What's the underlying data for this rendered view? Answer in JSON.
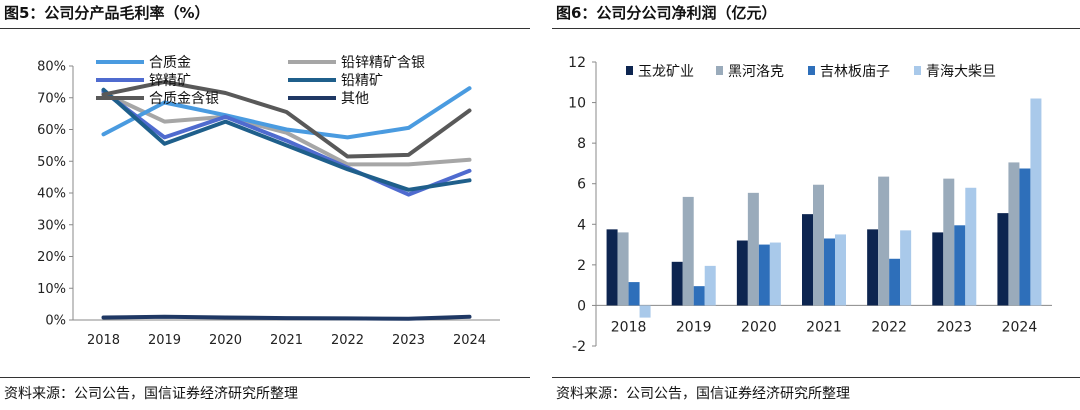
{
  "chart_data": [
    {
      "type": "line",
      "title": "图5：公司分产品毛利率（%）",
      "categories": [
        "2018",
        "2019",
        "2020",
        "2021",
        "2022",
        "2023",
        "2024"
      ],
      "ylim": [
        0,
        80
      ],
      "yticks": [
        "0%",
        "10%",
        "20%",
        "30%",
        "40%",
        "50%",
        "60%",
        "70%",
        "80%"
      ],
      "ytick_values": [
        0,
        10,
        20,
        30,
        40,
        50,
        60,
        70,
        80
      ],
      "grid": false,
      "legend": "top-left, two columns",
      "series": [
        {
          "name": "合质金",
          "color": "#4a9be0",
          "values": [
            58.5,
            68.5,
            64.5,
            60,
            57.5,
            60.5,
            73
          ]
        },
        {
          "name": "铅锌精矿含银",
          "color": "#a6a6a6",
          "values": [
            71.5,
            62.5,
            64,
            59,
            49,
            49,
            50.5
          ]
        },
        {
          "name": "锌精矿",
          "color": "#4f6bcf",
          "values": [
            72,
            57.5,
            64,
            56.5,
            48,
            39.5,
            47
          ]
        },
        {
          "name": "铅精矿",
          "color": "#1f5f8b",
          "values": [
            72.5,
            55.5,
            62.5,
            55,
            47.5,
            41,
            44
          ]
        },
        {
          "name": "合质金含银",
          "color": "#595959",
          "values": [
            71,
            75,
            71.5,
            65.5,
            51.5,
            52,
            66
          ]
        },
        {
          "name": "其他",
          "color": "#1f3864",
          "values": [
            0.8,
            1,
            0.8,
            0.6,
            0.5,
            0.4,
            1
          ]
        }
      ],
      "source": "资料来源：公司公告，国信证券经济研究所整理"
    },
    {
      "type": "bar",
      "title": "图6：公司分公司净利润（亿元）",
      "categories": [
        "2018",
        "2019",
        "2020",
        "2021",
        "2022",
        "2023",
        "2024"
      ],
      "ylim": [
        -2,
        12
      ],
      "yticks": [
        "-2",
        "0",
        "2",
        "4",
        "6",
        "8",
        "10",
        "12"
      ],
      "ytick_values": [
        -2,
        0,
        2,
        4,
        6,
        8,
        10,
        12
      ],
      "grid": false,
      "legend": "top-left, one row",
      "series": [
        {
          "name": "玉龙矿业",
          "color": "#0d2550",
          "values": [
            3.75,
            2.15,
            3.2,
            4.5,
            3.75,
            3.6,
            4.55
          ]
        },
        {
          "name": "黑河洛克",
          "color": "#9aabbb",
          "values": [
            3.6,
            5.35,
            5.55,
            5.95,
            6.35,
            6.25,
            7.05
          ]
        },
        {
          "name": "吉林板庙子",
          "color": "#2e6fba",
          "values": [
            1.15,
            0.95,
            3.0,
            3.3,
            2.3,
            3.95,
            6.75
          ]
        },
        {
          "name": "青海大柴旦",
          "color": "#a9c9ea",
          "values": [
            -0.6,
            1.95,
            3.1,
            3.5,
            3.7,
            5.8,
            10.2
          ]
        }
      ],
      "source": "资料来源：公司公告，国信证券经济研究所整理"
    }
  ]
}
